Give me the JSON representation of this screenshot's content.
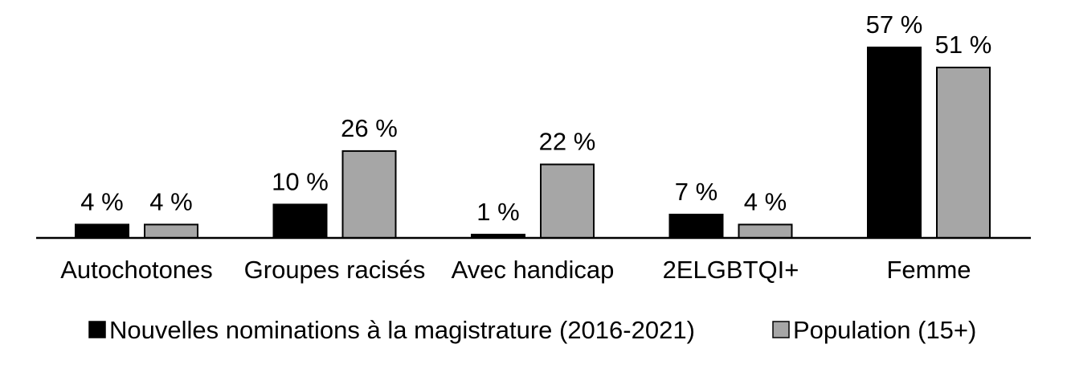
{
  "chart_data": {
    "type": "bar",
    "categories": [
      "Autochotones",
      "Groupes racisés",
      "Avec handicap",
      "2ELGBTQI+",
      "Femme"
    ],
    "series": [
      {
        "name": "Nouvelles nominations à la magistrature (2016-2021)",
        "values": [
          4,
          10,
          1,
          7,
          57
        ],
        "labels": [
          "4 %",
          "10 %",
          "1 %",
          "7 %",
          "57 %"
        ],
        "color": "#000000"
      },
      {
        "name": "Population (15+)",
        "values": [
          4,
          26,
          22,
          4,
          51
        ],
        "labels": [
          "4 %",
          "26 %",
          "22 %",
          "4 %",
          "51 %"
        ],
        "color": "#a6a6a6"
      }
    ],
    "ylim": [
      0,
      57
    ],
    "grid": false,
    "legend": "bottom"
  }
}
